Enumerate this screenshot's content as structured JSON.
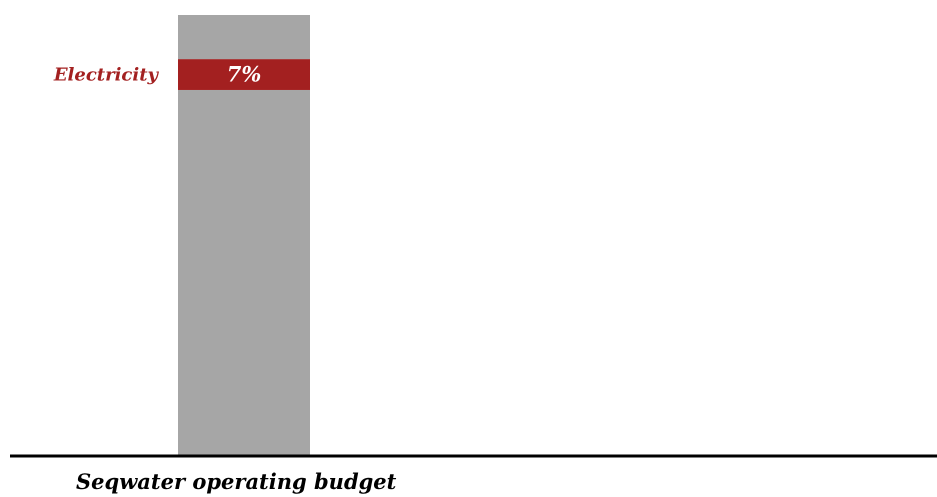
{
  "chart_data": {
    "type": "bar",
    "stacked": true,
    "categories": [
      "Seqwater operating budget"
    ],
    "series": [
      {
        "name": "",
        "values": [
          83
        ],
        "color": "#a6a6a6"
      },
      {
        "name": "Electricity",
        "values": [
          7
        ],
        "label": "7%",
        "color": "#a32020"
      },
      {
        "name": "",
        "values": [
          10
        ],
        "color": "#a6a6a6"
      }
    ],
    "ylim": [
      0,
      100
    ],
    "grid": false,
    "title": "",
    "xlabel": "",
    "ylabel": ""
  }
}
